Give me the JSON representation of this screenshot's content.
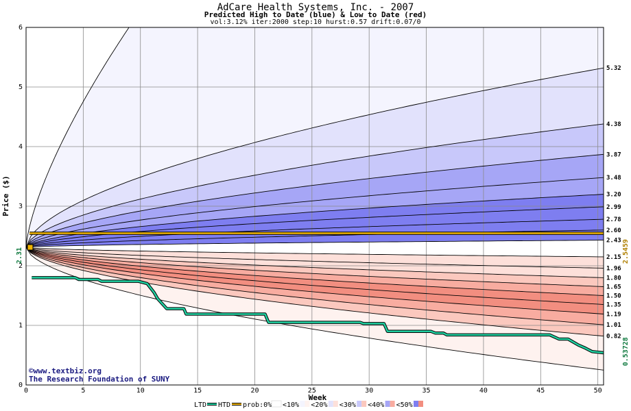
{
  "header": {
    "title": "AdCare Health Systems, Inc. - 2007",
    "subtitle": "Predicted High to Date (blue) &  Low to Date (red)",
    "params": "vol:3.12% iter:2000 step:10 hurst:0.57 drift:0.07/0"
  },
  "credits": {
    "site": "©www.textbiz.org",
    "org": "The Research Foundation of SUNY"
  },
  "legend": {
    "ltd": "LTD",
    "htd": "HTD",
    "prob_prefix": "prob:0%",
    "items": [
      "<10%",
      "<20%",
      "<30%",
      "<40%",
      "<50%"
    ],
    "colors": {
      "blue": [
        "#f4f4fe",
        "#e2e2fc",
        "#c8c8fa",
        "#a6a6f6",
        "#7e7ef0"
      ],
      "red": [
        "#fef2ef",
        "#fde0da",
        "#fbc8be",
        "#f8aca0",
        "#f28e80"
      ]
    }
  },
  "chart_data": {
    "type": "area",
    "title": "AdCare Health Systems, Inc. - 2007",
    "xlabel": "Week",
    "ylabel": "Price ($)",
    "xlim": [
      0,
      50.5
    ],
    "ylim": [
      0,
      6
    ],
    "x_ticks": [
      0,
      5,
      10,
      15,
      20,
      25,
      30,
      35,
      40,
      45,
      50
    ],
    "y_ticks": [
      0,
      1,
      2,
      3,
      4,
      5,
      6
    ],
    "grid": true,
    "start_price": 2.31,
    "start_label": "2.31",
    "high_ref_label": "2.5459",
    "low_ref_label": "0.53728",
    "upper_quantiles": [
      {
        "end": 5.32,
        "label": "5.32"
      },
      {
        "end": 4.38,
        "label": "4.38"
      },
      {
        "end": 3.87,
        "label": "3.87"
      },
      {
        "end": 3.48,
        "label": "3.48"
      },
      {
        "end": 3.2,
        "label": "3.20"
      },
      {
        "end": 2.99,
        "label": "2.99"
      },
      {
        "end": 2.78,
        "label": "2.78"
      },
      {
        "end": 2.6,
        "label": "2.60"
      },
      {
        "end": 2.43,
        "label": "2.43"
      }
    ],
    "lower_quantiles": [
      {
        "end": 2.15,
        "label": "2.15"
      },
      {
        "end": 1.96,
        "label": "1.96"
      },
      {
        "end": 1.8,
        "label": "1.80"
      },
      {
        "end": 1.65,
        "label": "1.65"
      },
      {
        "end": 1.5,
        "label": "1.50"
      },
      {
        "end": 1.35,
        "label": "1.35"
      },
      {
        "end": 1.19,
        "label": "1.19"
      },
      {
        "end": 1.01,
        "label": "1.01"
      },
      {
        "end": 0.82,
        "label": "0.82"
      }
    ],
    "outer_upper": {
      "x_exit": 9.0,
      "y_exit": 6.0
    },
    "outer_lower_end": 0.25,
    "htd_line": {
      "y": 2.5459
    },
    "ltd_series": {
      "x": [
        0.5,
        4.3,
        4.6,
        6.3,
        6.6,
        9.8,
        10.6,
        11.2,
        11.5,
        12.3,
        12.7,
        13.8,
        14.0,
        20.9,
        21.2,
        29.2,
        29.5,
        31.3,
        31.6,
        35.4,
        35.8,
        36.5,
        36.8,
        45.8,
        46.6,
        47.4,
        48.3,
        48.9,
        49.5,
        50.5
      ],
      "y": [
        1.8,
        1.8,
        1.77,
        1.77,
        1.74,
        1.74,
        1.7,
        1.55,
        1.45,
        1.28,
        1.28,
        1.28,
        1.19,
        1.19,
        1.05,
        1.05,
        1.03,
        1.03,
        0.9,
        0.9,
        0.87,
        0.87,
        0.84,
        0.84,
        0.77,
        0.77,
        0.67,
        0.62,
        0.56,
        0.54
      ]
    }
  }
}
